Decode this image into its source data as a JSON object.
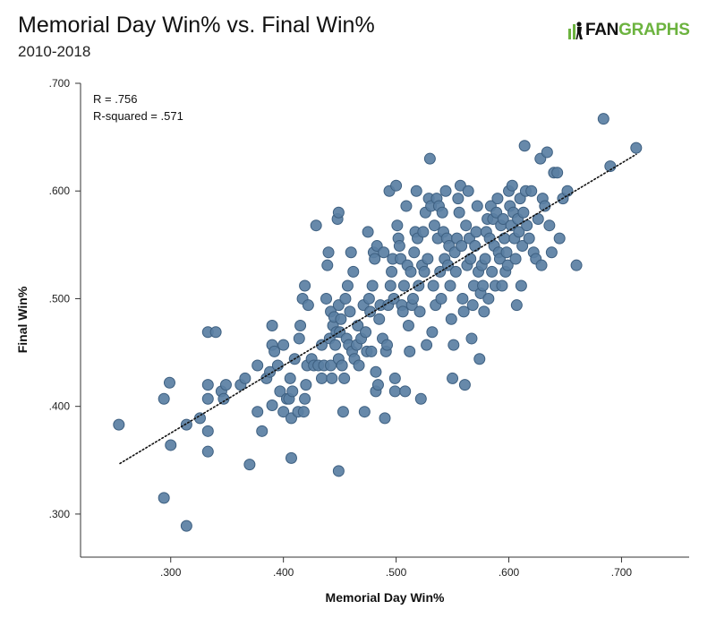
{
  "header": {
    "title": "Memorial Day Win% vs. Final Win%",
    "subtitle": "2010-2018",
    "logo_fan": "FAN",
    "logo_graphs": "GRAPHS"
  },
  "annotations": {
    "r": "R = .756",
    "r_squared": "R-squared = .571"
  },
  "colors": {
    "point_fill": "#5a7fa3",
    "point_stroke": "#3d5f80",
    "axis": "#333333",
    "trend": "#111111",
    "logo_green": "#6cb33f"
  },
  "chart_data": {
    "type": "scatter",
    "xlabel": "Memorial Day Win%",
    "ylabel": "Final Win%",
    "xlim": [
      0.22,
      0.76
    ],
    "ylim": [
      0.26,
      0.7
    ],
    "xticks": [
      0.3,
      0.4,
      0.5,
      0.6,
      0.7
    ],
    "xtick_labels": [
      ".300",
      ".400",
      ".500",
      ".600",
      ".700"
    ],
    "yticks": [
      0.3,
      0.4,
      0.5,
      0.6,
      0.7
    ],
    "ytick_labels": [
      ".300",
      ".400",
      ".500",
      ".600",
      ".700"
    ],
    "grid": false,
    "trendline": {
      "style": "dotted",
      "x": [
        0.255,
        0.713
      ],
      "y": [
        0.347,
        0.634
      ]
    },
    "points": [
      [
        0.254,
        0.383
      ],
      [
        0.294,
        0.315
      ],
      [
        0.294,
        0.407
      ],
      [
        0.299,
        0.422
      ],
      [
        0.3,
        0.364
      ],
      [
        0.314,
        0.289
      ],
      [
        0.314,
        0.383
      ],
      [
        0.326,
        0.389
      ],
      [
        0.333,
        0.469
      ],
      [
        0.333,
        0.42
      ],
      [
        0.333,
        0.407
      ],
      [
        0.333,
        0.377
      ],
      [
        0.333,
        0.358
      ],
      [
        0.34,
        0.469
      ],
      [
        0.345,
        0.414
      ],
      [
        0.347,
        0.407
      ],
      [
        0.349,
        0.42
      ],
      [
        0.362,
        0.42
      ],
      [
        0.366,
        0.426
      ],
      [
        0.37,
        0.346
      ],
      [
        0.377,
        0.438
      ],
      [
        0.377,
        0.395
      ],
      [
        0.381,
        0.377
      ],
      [
        0.385,
        0.426
      ],
      [
        0.388,
        0.432
      ],
      [
        0.39,
        0.457
      ],
      [
        0.39,
        0.475
      ],
      [
        0.39,
        0.401
      ],
      [
        0.392,
        0.451
      ],
      [
        0.395,
        0.438
      ],
      [
        0.397,
        0.414
      ],
      [
        0.4,
        0.457
      ],
      [
        0.4,
        0.395
      ],
      [
        0.403,
        0.407
      ],
      [
        0.405,
        0.407
      ],
      [
        0.406,
        0.426
      ],
      [
        0.407,
        0.389
      ],
      [
        0.407,
        0.352
      ],
      [
        0.408,
        0.414
      ],
      [
        0.41,
        0.444
      ],
      [
        0.413,
        0.395
      ],
      [
        0.414,
        0.463
      ],
      [
        0.415,
        0.475
      ],
      [
        0.417,
        0.5
      ],
      [
        0.418,
        0.395
      ],
      [
        0.419,
        0.407
      ],
      [
        0.419,
        0.512
      ],
      [
        0.42,
        0.42
      ],
      [
        0.421,
        0.438
      ],
      [
        0.422,
        0.494
      ],
      [
        0.425,
        0.444
      ],
      [
        0.427,
        0.438
      ],
      [
        0.429,
        0.568
      ],
      [
        0.431,
        0.438
      ],
      [
        0.434,
        0.457
      ],
      [
        0.434,
        0.426
      ],
      [
        0.436,
        0.438
      ],
      [
        0.438,
        0.5
      ],
      [
        0.439,
        0.531
      ],
      [
        0.44,
        0.543
      ],
      [
        0.441,
        0.463
      ],
      [
        0.442,
        0.488
      ],
      [
        0.442,
        0.438
      ],
      [
        0.443,
        0.426
      ],
      [
        0.444,
        0.475
      ],
      [
        0.445,
        0.483
      ],
      [
        0.446,
        0.457
      ],
      [
        0.447,
        0.469
      ],
      [
        0.448,
        0.574
      ],
      [
        0.449,
        0.58
      ],
      [
        0.449,
        0.494
      ],
      [
        0.449,
        0.444
      ],
      [
        0.449,
        0.34
      ],
      [
        0.45,
        0.469
      ],
      [
        0.451,
        0.481
      ],
      [
        0.452,
        0.438
      ],
      [
        0.453,
        0.395
      ],
      [
        0.454,
        0.426
      ],
      [
        0.455,
        0.5
      ],
      [
        0.456,
        0.463
      ],
      [
        0.457,
        0.512
      ],
      [
        0.458,
        0.457
      ],
      [
        0.459,
        0.488
      ],
      [
        0.46,
        0.543
      ],
      [
        0.461,
        0.451
      ],
      [
        0.462,
        0.525
      ],
      [
        0.463,
        0.444
      ],
      [
        0.465,
        0.457
      ],
      [
        0.466,
        0.475
      ],
      [
        0.467,
        0.438
      ],
      [
        0.469,
        0.463
      ],
      [
        0.471,
        0.494
      ],
      [
        0.472,
        0.395
      ],
      [
        0.473,
        0.469
      ],
      [
        0.474,
        0.451
      ],
      [
        0.475,
        0.562
      ],
      [
        0.476,
        0.5
      ],
      [
        0.477,
        0.488
      ],
      [
        0.478,
        0.451
      ],
      [
        0.479,
        0.512
      ],
      [
        0.48,
        0.543
      ],
      [
        0.481,
        0.537
      ],
      [
        0.482,
        0.432
      ],
      [
        0.482,
        0.414
      ],
      [
        0.483,
        0.549
      ],
      [
        0.484,
        0.42
      ],
      [
        0.485,
        0.481
      ],
      [
        0.486,
        0.494
      ],
      [
        0.488,
        0.463
      ],
      [
        0.489,
        0.543
      ],
      [
        0.49,
        0.389
      ],
      [
        0.491,
        0.451
      ],
      [
        0.492,
        0.457
      ],
      [
        0.493,
        0.494
      ],
      [
        0.494,
        0.6
      ],
      [
        0.495,
        0.512
      ],
      [
        0.496,
        0.525
      ],
      [
        0.497,
        0.537
      ],
      [
        0.498,
        0.5
      ],
      [
        0.499,
        0.426
      ],
      [
        0.499,
        0.414
      ],
      [
        0.5,
        0.605
      ],
      [
        0.501,
        0.568
      ],
      [
        0.502,
        0.556
      ],
      [
        0.503,
        0.549
      ],
      [
        0.504,
        0.537
      ],
      [
        0.505,
        0.494
      ],
      [
        0.506,
        0.488
      ],
      [
        0.507,
        0.512
      ],
      [
        0.508,
        0.414
      ],
      [
        0.509,
        0.586
      ],
      [
        0.51,
        0.531
      ],
      [
        0.511,
        0.475
      ],
      [
        0.512,
        0.451
      ],
      [
        0.513,
        0.525
      ],
      [
        0.514,
        0.494
      ],
      [
        0.515,
        0.5
      ],
      [
        0.516,
        0.543
      ],
      [
        0.517,
        0.562
      ],
      [
        0.518,
        0.6
      ],
      [
        0.519,
        0.556
      ],
      [
        0.52,
        0.512
      ],
      [
        0.521,
        0.488
      ],
      [
        0.522,
        0.407
      ],
      [
        0.523,
        0.531
      ],
      [
        0.524,
        0.562
      ],
      [
        0.525,
        0.525
      ],
      [
        0.526,
        0.58
      ],
      [
        0.527,
        0.457
      ],
      [
        0.528,
        0.537
      ],
      [
        0.529,
        0.593
      ],
      [
        0.53,
        0.63
      ],
      [
        0.531,
        0.586
      ],
      [
        0.532,
        0.469
      ],
      [
        0.533,
        0.512
      ],
      [
        0.534,
        0.568
      ],
      [
        0.535,
        0.494
      ],
      [
        0.536,
        0.593
      ],
      [
        0.537,
        0.556
      ],
      [
        0.538,
        0.586
      ],
      [
        0.539,
        0.525
      ],
      [
        0.54,
        0.5
      ],
      [
        0.541,
        0.58
      ],
      [
        0.542,
        0.562
      ],
      [
        0.543,
        0.537
      ],
      [
        0.544,
        0.6
      ],
      [
        0.545,
        0.556
      ],
      [
        0.546,
        0.531
      ],
      [
        0.547,
        0.549
      ],
      [
        0.548,
        0.512
      ],
      [
        0.549,
        0.481
      ],
      [
        0.55,
        0.426
      ],
      [
        0.551,
        0.457
      ],
      [
        0.552,
        0.543
      ],
      [
        0.553,
        0.525
      ],
      [
        0.554,
        0.556
      ],
      [
        0.555,
        0.593
      ],
      [
        0.556,
        0.58
      ],
      [
        0.557,
        0.605
      ],
      [
        0.558,
        0.549
      ],
      [
        0.559,
        0.5
      ],
      [
        0.56,
        0.488
      ],
      [
        0.561,
        0.42
      ],
      [
        0.562,
        0.568
      ],
      [
        0.563,
        0.531
      ],
      [
        0.564,
        0.6
      ],
      [
        0.565,
        0.556
      ],
      [
        0.566,
        0.537
      ],
      [
        0.567,
        0.463
      ],
      [
        0.568,
        0.494
      ],
      [
        0.569,
        0.512
      ],
      [
        0.57,
        0.549
      ],
      [
        0.571,
        0.562
      ],
      [
        0.572,
        0.586
      ],
      [
        0.573,
        0.525
      ],
      [
        0.574,
        0.444
      ],
      [
        0.575,
        0.505
      ],
      [
        0.576,
        0.531
      ],
      [
        0.577,
        0.512
      ],
      [
        0.578,
        0.488
      ],
      [
        0.579,
        0.537
      ],
      [
        0.58,
        0.562
      ],
      [
        0.581,
        0.574
      ],
      [
        0.582,
        0.5
      ],
      [
        0.583,
        0.556
      ],
      [
        0.584,
        0.586
      ],
      [
        0.585,
        0.525
      ],
      [
        0.586,
        0.574
      ],
      [
        0.587,
        0.549
      ],
      [
        0.588,
        0.512
      ],
      [
        0.589,
        0.58
      ],
      [
        0.59,
        0.593
      ],
      [
        0.591,
        0.543
      ],
      [
        0.592,
        0.537
      ],
      [
        0.593,
        0.568
      ],
      [
        0.594,
        0.512
      ],
      [
        0.595,
        0.574
      ],
      [
        0.596,
        0.556
      ],
      [
        0.597,
        0.525
      ],
      [
        0.598,
        0.543
      ],
      [
        0.599,
        0.531
      ],
      [
        0.6,
        0.6
      ],
      [
        0.601,
        0.586
      ],
      [
        0.602,
        0.568
      ],
      [
        0.603,
        0.605
      ],
      [
        0.604,
        0.58
      ],
      [
        0.605,
        0.556
      ],
      [
        0.606,
        0.537
      ],
      [
        0.607,
        0.494
      ],
      [
        0.608,
        0.574
      ],
      [
        0.609,
        0.562
      ],
      [
        0.61,
        0.593
      ],
      [
        0.611,
        0.512
      ],
      [
        0.612,
        0.549
      ],
      [
        0.613,
        0.58
      ],
      [
        0.614,
        0.642
      ],
      [
        0.615,
        0.6
      ],
      [
        0.616,
        0.568
      ],
      [
        0.618,
        0.556
      ],
      [
        0.62,
        0.6
      ],
      [
        0.622,
        0.543
      ],
      [
        0.624,
        0.537
      ],
      [
        0.626,
        0.574
      ],
      [
        0.628,
        0.63
      ],
      [
        0.629,
        0.531
      ],
      [
        0.63,
        0.593
      ],
      [
        0.632,
        0.586
      ],
      [
        0.634,
        0.636
      ],
      [
        0.636,
        0.568
      ],
      [
        0.638,
        0.543
      ],
      [
        0.64,
        0.617
      ],
      [
        0.643,
        0.617
      ],
      [
        0.645,
        0.556
      ],
      [
        0.648,
        0.593
      ],
      [
        0.652,
        0.6
      ],
      [
        0.66,
        0.531
      ],
      [
        0.684,
        0.667
      ],
      [
        0.69,
        0.623
      ],
      [
        0.713,
        0.64
      ]
    ]
  }
}
